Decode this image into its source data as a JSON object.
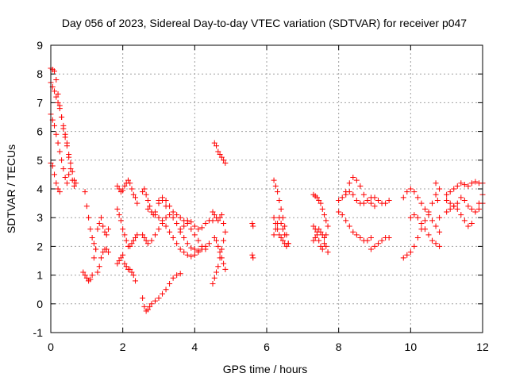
{
  "chart_data": {
    "type": "scatter",
    "title": "Day 056 of 2023, Sidereal Day-to-day VTEC variation (SDTVAR) for receiver p047",
    "xlabel": "GPS time / hours",
    "ylabel": "SDTVAR / TECUs",
    "xlim": [
      0,
      12
    ],
    "ylim": [
      -1,
      9
    ],
    "xticks": [
      0,
      2,
      4,
      6,
      8,
      10,
      12
    ],
    "yticks": [
      -1,
      0,
      1,
      2,
      3,
      4,
      5,
      6,
      7,
      8,
      9
    ],
    "grid": true,
    "marker": "+",
    "color": "#ff0000",
    "series": [
      {
        "name": "a",
        "x": [
          0.0,
          0.05,
          0.1,
          0.15,
          0.2,
          0.25,
          0.3,
          0.35,
          0.4,
          0.45,
          0.5,
          0.55,
          0.6,
          0.65,
          0.7
        ],
        "y": [
          8.2,
          8.15,
          8.1,
          7.8,
          7.3,
          6.9,
          6.5,
          6.1,
          5.8,
          5.5,
          5.1,
          4.7,
          4.3,
          4.1,
          4.2
        ]
      },
      {
        "name": "b",
        "x": [
          0.0,
          0.05,
          0.1,
          0.15,
          0.2,
          0.25,
          0.3,
          0.35,
          0.4,
          0.45,
          0.5,
          0.55,
          0.6,
          0.65
        ],
        "y": [
          7.7,
          7.55,
          7.4,
          7.2,
          7.0,
          6.8,
          6.5,
          6.2,
          5.9,
          5.6,
          5.2,
          4.9,
          4.6,
          4.3
        ]
      },
      {
        "name": "c",
        "x": [
          0.0,
          0.05,
          0.1,
          0.15,
          0.2,
          0.25,
          0.3,
          0.35,
          0.4,
          0.45,
          0.5
        ],
        "y": [
          6.6,
          6.4,
          6.2,
          5.9,
          5.6,
          5.3,
          5.0,
          4.7,
          4.4,
          4.2,
          4.5
        ]
      },
      {
        "name": "d",
        "x": [
          0.0,
          0.05,
          0.1,
          0.15,
          0.2,
          0.25
        ],
        "y": [
          4.9,
          4.8,
          4.5,
          4.2,
          4.0,
          3.9
        ]
      },
      {
        "name": "e",
        "x": [
          0.9,
          0.95,
          1.0,
          1.05,
          1.1,
          1.15,
          1.2,
          1.25
        ],
        "y": [
          1.1,
          1.0,
          0.9,
          0.8,
          0.85,
          1.0,
          1.6,
          1.9
        ]
      },
      {
        "name": "f",
        "x": [
          0.95,
          1.0,
          1.05,
          1.1,
          1.15,
          1.2,
          1.25
        ],
        "y": [
          3.9,
          3.4,
          3.0,
          2.6,
          2.3,
          2.1,
          1.9
        ]
      },
      {
        "name": "g",
        "x": [
          1.3,
          1.35,
          1.4,
          1.45,
          1.5,
          1.55,
          1.6
        ],
        "y": [
          1.1,
          1.3,
          1.6,
          1.8,
          1.9,
          1.9,
          1.8
        ]
      },
      {
        "name": "h",
        "x": [
          1.3,
          1.35,
          1.4,
          1.45,
          1.5,
          1.55,
          1.6
        ],
        "y": [
          2.6,
          2.8,
          3.0,
          2.7,
          2.5,
          2.4,
          2.6
        ]
      },
      {
        "name": "i",
        "x": [
          1.85,
          1.9,
          1.95,
          2.0,
          2.05,
          2.1,
          2.15,
          2.2,
          2.25,
          2.3,
          2.35,
          2.4
        ],
        "y": [
          4.1,
          4.0,
          3.9,
          3.95,
          4.1,
          4.2,
          4.3,
          4.2,
          4.0,
          3.8,
          3.7,
          3.5
        ]
      },
      {
        "name": "j",
        "x": [
          1.85,
          1.9,
          1.95,
          2.0,
          2.05,
          2.1,
          2.15,
          2.2,
          2.25,
          2.3,
          2.35,
          2.4
        ],
        "y": [
          3.3,
          3.1,
          2.9,
          2.6,
          2.4,
          2.2,
          2.0,
          2.0,
          2.1,
          2.2,
          2.3,
          2.4
        ]
      },
      {
        "name": "k",
        "x": [
          1.85,
          1.9,
          1.95,
          2.0,
          2.05,
          2.1,
          2.15,
          2.2,
          2.25,
          2.3,
          2.35
        ],
        "y": [
          1.4,
          1.5,
          1.6,
          1.7,
          1.4,
          1.3,
          1.2,
          1.2,
          1.1,
          1.0,
          0.8
        ]
      },
      {
        "name": "l",
        "x": [
          2.55,
          2.6,
          2.65,
          2.7,
          2.75,
          2.8,
          2.9,
          3.0,
          3.1,
          3.2,
          3.3,
          3.4,
          3.5,
          3.6
        ],
        "y": [
          0.2,
          -0.1,
          -0.25,
          -0.2,
          -0.1,
          0.0,
          0.1,
          0.2,
          0.35,
          0.5,
          0.7,
          0.9,
          1.0,
          1.05
        ]
      },
      {
        "name": "m",
        "x": [
          2.55,
          2.6,
          2.65,
          2.7,
          2.75,
          2.8,
          2.85,
          2.9,
          3.0,
          3.1,
          3.2
        ],
        "y": [
          3.9,
          4.0,
          3.8,
          3.6,
          3.4,
          3.2,
          3.1,
          3.2,
          3.5,
          3.6,
          3.4
        ]
      },
      {
        "name": "n",
        "x": [
          2.55,
          2.6,
          2.65,
          2.7,
          2.8,
          2.9,
          3.0,
          3.1,
          3.2,
          3.3,
          3.4,
          3.5,
          3.6,
          3.7,
          3.8,
          3.9,
          4.0,
          4.1,
          4.2
        ],
        "y": [
          2.4,
          2.3,
          2.2,
          2.1,
          2.2,
          2.4,
          2.6,
          2.8,
          3.0,
          3.1,
          3.0,
          2.8,
          2.6,
          2.3,
          2.1,
          1.95,
          1.9,
          1.85,
          1.9
        ]
      },
      {
        "name": "o",
        "x": [
          2.7,
          2.8,
          2.9,
          3.0,
          3.1,
          3.2,
          3.3,
          3.4,
          3.5,
          3.6,
          3.7,
          3.8,
          3.9,
          4.0,
          4.1,
          4.2,
          4.3
        ],
        "y": [
          3.3,
          3.2,
          3.1,
          3.0,
          2.9,
          2.7,
          2.5,
          2.3,
          2.1,
          1.9,
          1.8,
          1.7,
          1.65,
          1.7,
          1.8,
          1.9,
          2.0
        ]
      },
      {
        "name": "p",
        "x": [
          3.0,
          3.1,
          3.2,
          3.3,
          3.4,
          3.5,
          3.6,
          3.7,
          3.8,
          3.9,
          4.0,
          4.1,
          4.2,
          4.3,
          4.4
        ],
        "y": [
          3.6,
          3.7,
          3.6,
          3.4,
          3.2,
          3.1,
          3.0,
          2.9,
          2.8,
          2.6,
          2.4,
          2.2,
          2.0,
          1.9,
          2.1
        ]
      },
      {
        "name": "q",
        "x": [
          3.6,
          3.7,
          3.8,
          3.9,
          4.0,
          4.1,
          4.2,
          4.3,
          4.4,
          4.5
        ],
        "y": [
          2.5,
          2.7,
          2.9,
          2.85,
          2.7,
          2.6,
          2.65,
          2.8,
          2.9,
          2.9
        ]
      },
      {
        "name": "r",
        "x": [
          4.55,
          4.6,
          4.65,
          4.7,
          4.75,
          4.8,
          4.85
        ],
        "y": [
          5.6,
          5.5,
          5.3,
          5.2,
          5.1,
          5.0,
          4.9
        ]
      },
      {
        "name": "s",
        "x": [
          4.5,
          4.55,
          4.6,
          4.65,
          4.7,
          4.75,
          4.8
        ],
        "y": [
          3.2,
          3.1,
          3.0,
          2.9,
          3.0,
          3.1,
          2.8
        ]
      },
      {
        "name": "t",
        "x": [
          4.5,
          4.55,
          4.6,
          4.65,
          4.7,
          4.75,
          4.8,
          4.85
        ],
        "y": [
          0.7,
          0.9,
          1.1,
          1.3,
          1.6,
          1.9,
          2.2,
          2.5
        ]
      },
      {
        "name": "u",
        "x": [
          4.55,
          4.6,
          4.65,
          4.7,
          4.75,
          4.8,
          4.85
        ],
        "y": [
          2.3,
          2.2,
          2.0,
          1.8,
          1.6,
          1.4,
          1.2
        ]
      },
      {
        "name": "v",
        "x": [
          5.6,
          5.62,
          5.6,
          5.62
        ],
        "y": [
          2.8,
          2.7,
          1.7,
          1.6
        ]
      },
      {
        "name": "w",
        "x": [
          6.2,
          6.25,
          6.3,
          6.35,
          6.4,
          6.45,
          6.5,
          6.55,
          6.6
        ],
        "y": [
          4.3,
          4.1,
          3.9,
          3.6,
          3.3,
          3.0,
          2.7,
          2.4,
          2.1
        ]
      },
      {
        "name": "x",
        "x": [
          6.2,
          6.25,
          6.3,
          6.35,
          6.4,
          6.45,
          6.5,
          6.55,
          6.6
        ],
        "y": [
          3.0,
          2.8,
          2.6,
          2.4,
          2.3,
          2.2,
          2.1,
          2.0,
          2.1
        ]
      },
      {
        "name": "y",
        "x": [
          6.2,
          6.25,
          6.3,
          6.35,
          6.4,
          6.45,
          6.5
        ],
        "y": [
          2.4,
          2.6,
          2.8,
          3.0,
          2.8,
          2.6,
          2.4
        ]
      },
      {
        "name": "z",
        "x": [
          7.3,
          7.35,
          7.4,
          7.45,
          7.5,
          7.55,
          7.6,
          7.65,
          7.7
        ],
        "y": [
          3.8,
          3.75,
          3.7,
          3.6,
          3.5,
          3.3,
          3.1,
          2.9,
          2.7
        ]
      },
      {
        "name": "aa",
        "x": [
          7.3,
          7.35,
          7.4,
          7.45,
          7.5,
          7.55,
          7.6,
          7.65,
          7.7
        ],
        "y": [
          2.2,
          2.3,
          2.5,
          2.6,
          2.5,
          2.4,
          2.3,
          2.0,
          1.8
        ]
      },
      {
        "name": "ab",
        "x": [
          7.3,
          7.35,
          7.4,
          7.45,
          7.5,
          7.55,
          7.6,
          7.65
        ],
        "y": [
          2.7,
          2.6,
          2.4,
          2.2,
          2.0,
          1.9,
          2.1,
          2.4
        ]
      },
      {
        "name": "ac",
        "x": [
          8.0,
          8.1,
          8.2,
          8.3,
          8.4,
          8.5,
          8.6,
          8.7,
          8.8,
          8.9,
          9.0,
          9.1,
          9.2,
          9.3,
          9.4
        ],
        "y": [
          3.6,
          3.7,
          3.8,
          3.9,
          3.8,
          3.6,
          3.5,
          3.5,
          3.6,
          3.7,
          3.7,
          3.6,
          3.5,
          3.5,
          3.6
        ]
      },
      {
        "name": "ad",
        "x": [
          8.0,
          8.1,
          8.2,
          8.3,
          8.4,
          8.5,
          8.6,
          8.7,
          8.8,
          8.9
        ],
        "y": [
          3.2,
          3.1,
          2.9,
          2.7,
          2.5,
          2.4,
          2.3,
          2.2,
          2.2,
          2.3
        ]
      },
      {
        "name": "ae",
        "x": [
          8.2,
          8.3,
          8.4,
          8.5,
          8.6,
          8.7,
          8.8,
          8.9,
          9.0
        ],
        "y": [
          3.9,
          4.2,
          4.4,
          4.3,
          4.1,
          3.8,
          3.6,
          3.5,
          3.4
        ]
      },
      {
        "name": "af",
        "x": [
          8.9,
          9.0,
          9.1,
          9.2,
          9.3,
          9.4
        ],
        "y": [
          1.9,
          2.0,
          2.1,
          2.2,
          2.3,
          2.3
        ]
      },
      {
        "name": "ag",
        "x": [
          9.8,
          9.9,
          10.0,
          10.1,
          10.2,
          10.3,
          10.4,
          10.5,
          10.6,
          10.7,
          10.8
        ],
        "y": [
          3.7,
          3.9,
          4.0,
          3.9,
          3.7,
          3.5,
          3.3,
          3.1,
          2.9,
          2.7,
          2.5
        ]
      },
      {
        "name": "ah",
        "x": [
          9.8,
          9.9,
          10.0,
          10.1,
          10.2,
          10.3,
          10.4,
          10.5,
          10.6,
          10.7,
          10.8
        ],
        "y": [
          1.6,
          1.7,
          1.8,
          2.0,
          2.3,
          2.6,
          2.9,
          3.2,
          3.5,
          3.8,
          4.0
        ]
      },
      {
        "name": "ai",
        "x": [
          10.0,
          10.1,
          10.2,
          10.3,
          10.4,
          10.5,
          10.6,
          10.7,
          10.8
        ],
        "y": [
          3.0,
          3.1,
          3.0,
          2.8,
          2.6,
          2.4,
          2.2,
          2.1,
          2.0
        ]
      },
      {
        "name": "aj",
        "x": [
          10.7,
          10.75,
          10.8
        ],
        "y": [
          4.2,
          3.6,
          3.0
        ]
      },
      {
        "name": "ak",
        "x": [
          11.0,
          11.1,
          11.2,
          11.3,
          11.4,
          11.5,
          11.6,
          11.7,
          11.8,
          11.9,
          12.0
        ],
        "y": [
          3.8,
          3.9,
          4.0,
          4.1,
          4.2,
          4.15,
          4.1,
          4.2,
          4.25,
          4.2,
          4.2
        ]
      },
      {
        "name": "al",
        "x": [
          11.0,
          11.1,
          11.2,
          11.3,
          11.4,
          11.5,
          11.6,
          11.7,
          11.8,
          11.9,
          12.0
        ],
        "y": [
          3.2,
          3.3,
          3.4,
          3.3,
          3.1,
          2.9,
          2.7,
          2.8,
          3.2,
          3.5,
          3.8
        ]
      },
      {
        "name": "am",
        "x": [
          11.0,
          11.1,
          11.2,
          11.3,
          11.4,
          11.5,
          11.6,
          11.7,
          11.8,
          11.9,
          12.0
        ],
        "y": [
          3.6,
          3.5,
          3.4,
          3.5,
          3.7,
          3.6,
          3.4,
          3.3,
          3.2,
          3.3,
          3.5
        ]
      }
    ]
  }
}
